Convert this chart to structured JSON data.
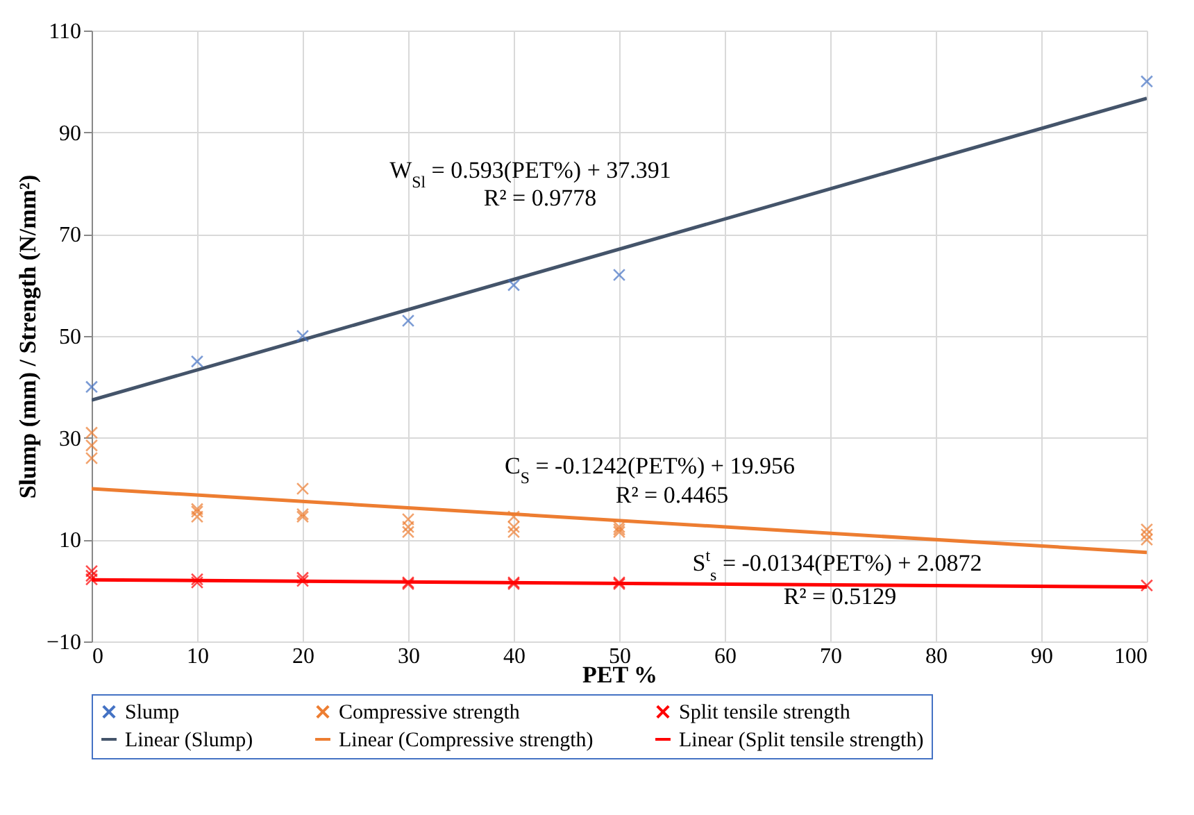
{
  "chart_data": {
    "type": "scatter",
    "xlabel": "PET %",
    "ylabel": "Slump (mm) / Strength (N/mm²)",
    "xlim": [
      0,
      100
    ],
    "xticks": [
      0,
      10,
      20,
      30,
      40,
      50,
      60,
      70,
      80,
      90,
      100
    ],
    "ylim": [
      -10,
      110
    ],
    "yticks": [
      -10,
      10,
      30,
      50,
      70,
      90,
      110
    ],
    "grid": true,
    "legend": "bottom",
    "series": [
      {
        "name": "Slump",
        "color": "#4472c4",
        "marker": "cross",
        "x": [
          0,
          10,
          20,
          30,
          40,
          50,
          100
        ],
        "values": [
          40,
          45,
          50,
          53,
          60,
          62,
          100
        ]
      },
      {
        "name": "Compressive strength",
        "color": "#ed7d31",
        "marker": "cross",
        "x": [
          0,
          0,
          0,
          10,
          10,
          10,
          20,
          20,
          20,
          30,
          30,
          30,
          40,
          40,
          40,
          50,
          50,
          50,
          100,
          100,
          100
        ],
        "values": [
          31,
          28.5,
          26,
          16,
          15.5,
          14.5,
          20,
          15,
          14.5,
          14,
          12.5,
          11.5,
          14.5,
          12.5,
          11.5,
          12.5,
          12,
          11.5,
          12,
          11,
          10
        ]
      },
      {
        "name": "Split tensile strength",
        "color": "#ff0000",
        "marker": "cross",
        "x": [
          0,
          0,
          0,
          10,
          10,
          20,
          20,
          30,
          30,
          40,
          40,
          50,
          50,
          100
        ],
        "values": [
          3.8,
          2.9,
          2.2,
          2.2,
          1.6,
          2.5,
          1.9,
          1.6,
          1.3,
          1.6,
          1.3,
          1.6,
          1.3,
          1.0
        ]
      },
      {
        "name": "Linear (Slump)",
        "type": "line",
        "color": "#44546a",
        "x": [
          0,
          100
        ],
        "values": [
          37.4,
          96.7
        ]
      },
      {
        "name": "Linear (Compressive strength)",
        "type": "line",
        "color": "#ed7d31",
        "x": [
          0,
          100
        ],
        "values": [
          20.0,
          7.5
        ]
      },
      {
        "name": "Linear (Split tensile strength)",
        "type": "line",
        "color": "#ff0000",
        "x": [
          0,
          100
        ],
        "values": [
          2.1,
          0.7
        ]
      }
    ],
    "annotations": [
      "W$_{Sl}$ = 0.593(PET%) + 37.391",
      "R² = 0.9778",
      "C$_{S}$ = -0.1242(PET%) + 19.956",
      "R² = 0.4465",
      "S$^{t}$$_{s}$ = -0.0134(PET%) + 2.0872",
      "R² = 0.5129"
    ]
  }
}
